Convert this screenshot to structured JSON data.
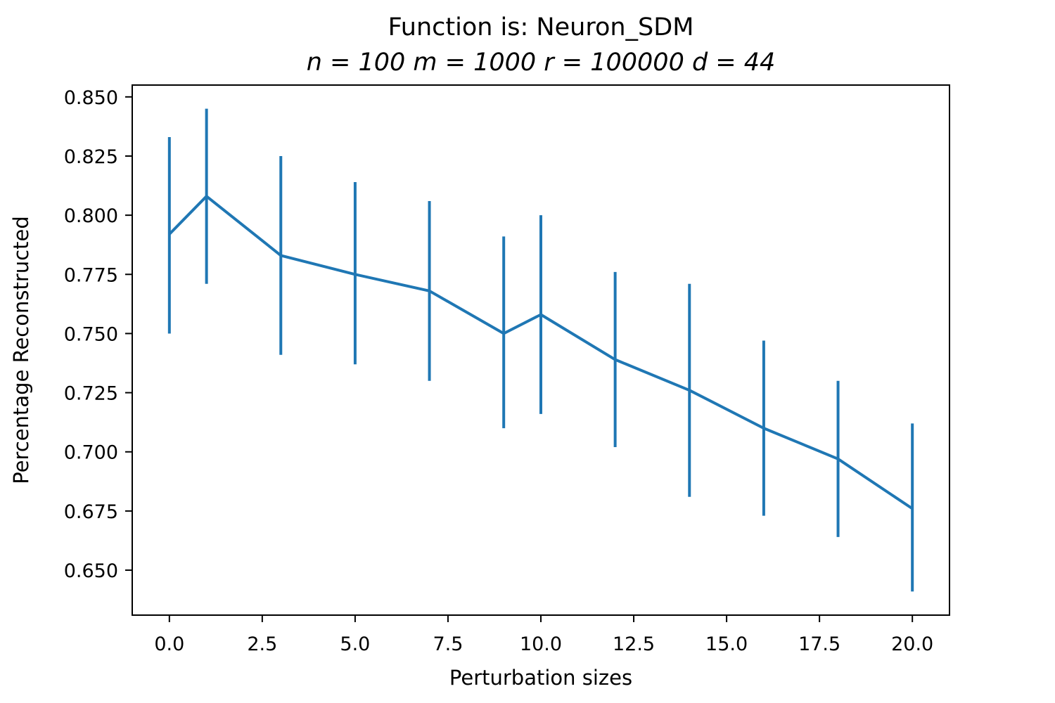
{
  "chart_data": {
    "type": "line",
    "title": "Function is: Neuron_SDM",
    "subtitle": "n = 100 m = 1000 r = 100000 d = 44",
    "xlabel": "Perturbation sizes",
    "ylabel": "Percentage Reconstructed",
    "xlim": [
      -1,
      21
    ],
    "ylim": [
      0.631,
      0.855
    ],
    "x_ticks": [
      0.0,
      2.5,
      5.0,
      7.5,
      10.0,
      12.5,
      15.0,
      17.5,
      20.0
    ],
    "x_tick_labels": [
      "0.0",
      "2.5",
      "5.0",
      "7.5",
      "10.0",
      "12.5",
      "15.0",
      "17.5",
      "20.0"
    ],
    "y_ticks": [
      0.65,
      0.675,
      0.7,
      0.725,
      0.75,
      0.775,
      0.8,
      0.825,
      0.85
    ],
    "y_tick_labels": [
      "0.650",
      "0.675",
      "0.700",
      "0.725",
      "0.750",
      "0.775",
      "0.800",
      "0.825",
      "0.850"
    ],
    "grid": false,
    "legend": "none",
    "color": "#1f77b4",
    "series": [
      {
        "x": [
          0,
          1,
          3,
          5,
          7,
          9,
          10,
          12,
          14,
          16,
          18,
          20
        ],
        "y": [
          0.792,
          0.808,
          0.783,
          0.775,
          0.768,
          0.75,
          0.758,
          0.739,
          0.726,
          0.71,
          0.697,
          0.676
        ],
        "err_low": [
          0.75,
          0.771,
          0.741,
          0.737,
          0.73,
          0.71,
          0.716,
          0.702,
          0.681,
          0.673,
          0.664,
          0.641
        ],
        "err_high": [
          0.833,
          0.845,
          0.825,
          0.814,
          0.806,
          0.791,
          0.8,
          0.776,
          0.771,
          0.747,
          0.73,
          0.712
        ]
      }
    ]
  }
}
